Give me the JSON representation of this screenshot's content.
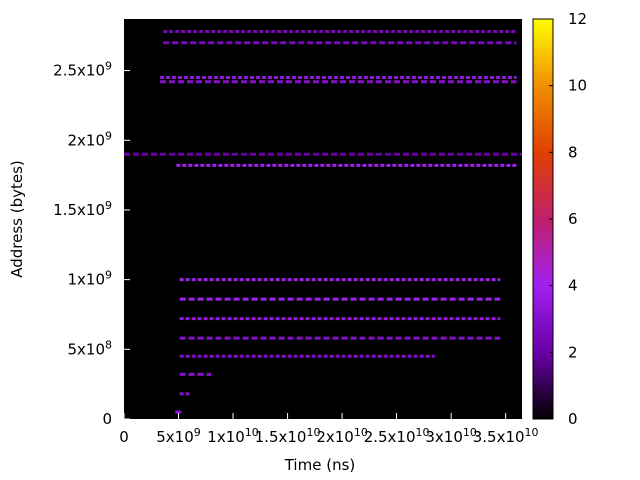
{
  "chart_data": {
    "type": "heatmap",
    "title": "",
    "xlabel": "Time (ns)",
    "ylabel": "Address (bytes)",
    "xlim": [
      0,
      36500000000.0
    ],
    "ylim": [
      0,
      2870000000.0
    ],
    "x_ticks": [
      {
        "value": 0,
        "base": "0",
        "exp": ""
      },
      {
        "value": 5000000000.0,
        "base": "5x10",
        "exp": "9"
      },
      {
        "value": 10000000000.0,
        "base": "1x10",
        "exp": "10"
      },
      {
        "value": 15000000000.0,
        "base": "1.5x10",
        "exp": "10"
      },
      {
        "value": 20000000000.0,
        "base": "2x10",
        "exp": "10"
      },
      {
        "value": 25000000000.0,
        "base": "2.5x10",
        "exp": "10"
      },
      {
        "value": 30000000000.0,
        "base": "3x10",
        "exp": "10"
      },
      {
        "value": 35000000000.0,
        "base": "3.5x10",
        "exp": "10"
      }
    ],
    "y_ticks": [
      {
        "value": 0,
        "base": "0",
        "exp": ""
      },
      {
        "value": 500000000.0,
        "base": "5x10",
        "exp": "8"
      },
      {
        "value": 1000000000.0,
        "base": "1x10",
        "exp": "9"
      },
      {
        "value": 1500000000.0,
        "base": "1.5x10",
        "exp": "9"
      },
      {
        "value": 2000000000.0,
        "base": "2x10",
        "exp": "9"
      },
      {
        "value": 2500000000.0,
        "base": "2.5x10",
        "exp": "9"
      }
    ],
    "colorbar": {
      "min": 0,
      "max": 12,
      "ticks": [
        "0",
        "2",
        "4",
        "6",
        "8",
        "10",
        "12"
      ],
      "colormap": [
        "#000000",
        "#6a00a8",
        "#a020f0",
        "#c0206a",
        "#e04000",
        "#f09000",
        "#ffff00"
      ]
    },
    "background_color": "#000000",
    "bands": [
      {
        "y": 2780000000.0,
        "x0": 3600000000.0,
        "x1": 36000000000.0,
        "value": 2.5
      },
      {
        "y": 2700000000.0,
        "x0": 3600000000.0,
        "x1": 36000000000.0,
        "value": 2.5
      },
      {
        "y": 2450000000.0,
        "x0": 3300000000.0,
        "x1": 36000000000.0,
        "value": 3.5
      },
      {
        "y": 2420000000.0,
        "x0": 3300000000.0,
        "x1": 36000000000.0,
        "value": 3.0
      },
      {
        "y": 1820000000.0,
        "x0": 4800000000.0,
        "x1": 36000000000.0,
        "value": 4.0
      },
      {
        "y": 1900000000.0,
        "x0": 0,
        "x1": 36500000000.0,
        "value": 2.0
      },
      {
        "y": 1000000000.0,
        "x0": 5100000000.0,
        "x1": 34500000000.0,
        "value": 4.0
      },
      {
        "y": 860000000.0,
        "x0": 5100000000.0,
        "x1": 34500000000.0,
        "value": 4.0
      },
      {
        "y": 720000000.0,
        "x0": 5100000000.0,
        "x1": 34500000000.0,
        "value": 3.5
      },
      {
        "y": 580000000.0,
        "x0": 5100000000.0,
        "x1": 34500000000.0,
        "value": 3.0
      },
      {
        "y": 450000000.0,
        "x0": 5100000000.0,
        "x1": 28500000000.0,
        "value": 3.0
      },
      {
        "y": 320000000.0,
        "x0": 5100000000.0,
        "x1": 8000000000.0,
        "value": 3.0
      },
      {
        "y": 180000000.0,
        "x0": 5100000000.0,
        "x1": 6000000000.0,
        "value": 3.0
      },
      {
        "y": 50000000.0,
        "x0": 4700000000.0,
        "x1": 5300000000.0,
        "value": 3.5
      }
    ]
  }
}
